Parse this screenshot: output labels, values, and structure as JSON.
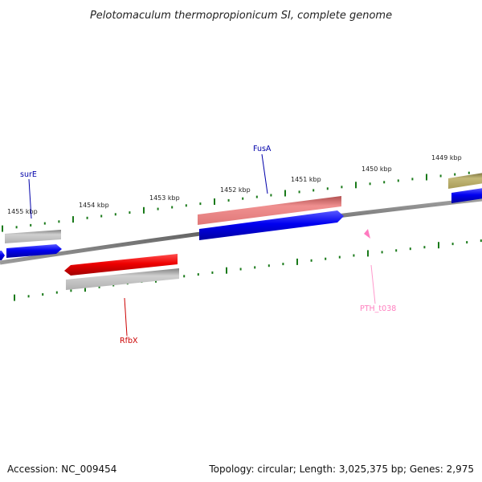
{
  "title": "Pelotomaculum thermopropionicum SI, complete genome",
  "footer": {
    "accession": "Accession: NC_009454",
    "topology": "Topology: circular; Length: 3,025,375 bp; Genes: 2,975"
  },
  "scale": {
    "unit": "kbp",
    "labels": [
      "1455 kbp",
      "1454 kbp",
      "1453 kbp",
      "1452 kbp",
      "1451 kbp",
      "1450 kbp",
      "1449 kbp"
    ]
  },
  "genes": {
    "surE": {
      "label": "surE",
      "strand": "+",
      "color": "#0000ee"
    },
    "fusA": {
      "label": "FusA",
      "strand": "+",
      "color": "#0000ee"
    },
    "rfbX": {
      "label": "RfbX",
      "strand": "-",
      "color": "#dd0000"
    },
    "trna": {
      "label": "PTH_t038",
      "strand": "-",
      "color": "#ff66b2"
    }
  },
  "colors": {
    "cds_forward": "#0000ee",
    "cds_reverse": "#ee0000",
    "gene_grey": "#b3b3b3",
    "gene_salmon": "#ee8080",
    "gene_olive": "#b3a860",
    "tick": "#1a7a1a",
    "backbone": "#777777"
  }
}
